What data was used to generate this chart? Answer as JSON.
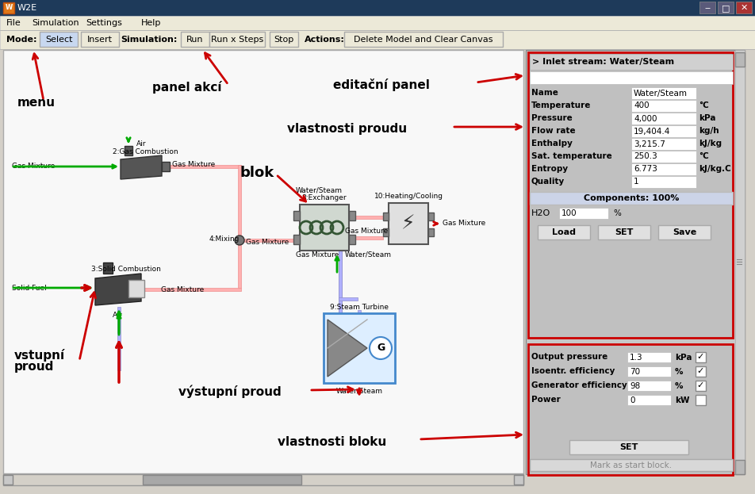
{
  "title": "W2E",
  "menu_items": [
    "File",
    "Simulation",
    "Settings",
    "Help"
  ],
  "toolbar_labels": [
    "Mode:",
    "Select",
    "Insert",
    "Simulation:",
    "Run",
    "Run x Steps",
    "Stop",
    "Actions:",
    "Delete Model and Clear Canvas"
  ],
  "editpanel_header": "> Inlet stream: Water/Steam",
  "stream_props": [
    [
      "Name",
      "Water/Steam",
      ""
    ],
    [
      "Temperature",
      "400",
      "°C"
    ],
    [
      "Pressure",
      "4,000",
      "kPa"
    ],
    [
      "Flow rate",
      "19,404.4",
      "kg/h"
    ],
    [
      "Enthalpy",
      "3,215.7",
      "kJ/kg"
    ],
    [
      "Sat. temperature",
      "250.3",
      "°C"
    ],
    [
      "Entropy",
      "6.773",
      "kJ/kg.C"
    ],
    [
      "Quality",
      "1",
      ""
    ]
  ],
  "components_label": "Components: 100%",
  "h2o_value": "100",
  "stream_btns": [
    "Load",
    "SET",
    "Save"
  ],
  "block_props": [
    [
      "Output pressure",
      "1.3",
      "kPa",
      true
    ],
    [
      "Isoentr. efficiency",
      "70",
      "%",
      true
    ],
    [
      "Generator efficiency",
      "98",
      "%",
      true
    ],
    [
      "Power",
      "0",
      "kW",
      false
    ]
  ],
  "red": "#cc0000",
  "green": "#00aa00",
  "canvas_bg": "#f8f8f8",
  "titlebar_bg": "#1e3a5a",
  "menubar_bg": "#ece9d8",
  "rpanel_bg": "#c0c0c0",
  "rpanel_border": "#cc0000"
}
